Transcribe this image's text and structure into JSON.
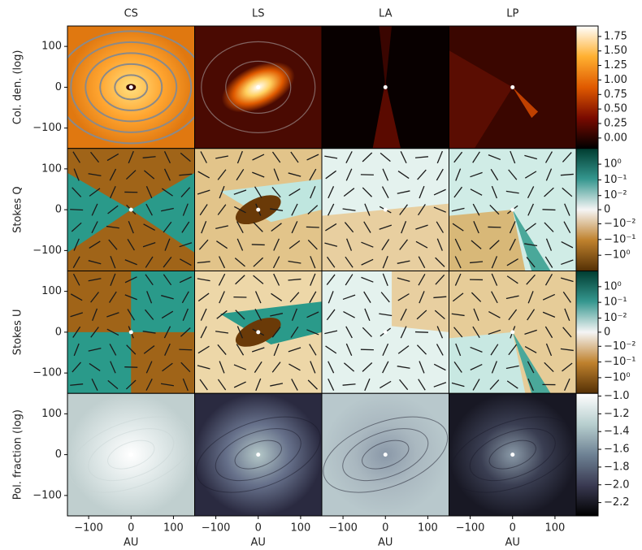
{
  "figure": {
    "columns": [
      "CS",
      "LS",
      "LA",
      "LP"
    ],
    "x_axis": {
      "label": "AU",
      "lim": [
        -150,
        150
      ],
      "ticks": [
        {
          "value": -100,
          "label": "−100"
        },
        0,
        100
      ]
    },
    "rows": [
      {
        "label": "Col. den. (log)",
        "ylim": [
          -150,
          150
        ],
        "yticks": [
          100,
          0,
          {
            "value": -100,
            "label": "−100"
          }
        ],
        "colorbar": {
          "scale": "linear",
          "lim": [
            -0.18,
            1.93
          ],
          "ticks": [
            {
              "value": 0,
              "label": "0.00"
            },
            0.25,
            {
              "value": 0.5,
              "label": "0.50"
            },
            0.75,
            {
              "value": 1,
              "label": "1.00"
            },
            1.25,
            {
              "value": 1.5,
              "label": "1.50"
            },
            1.75
          ],
          "colors": [
            "#000000",
            "#7a0a00",
            "#e05a00",
            "#ffb030",
            "#ffffff"
          ]
        }
      },
      {
        "label": "Stokes Q",
        "ylim": [
          -150,
          150
        ],
        "yticks": [
          100,
          0,
          {
            "value": -100,
            "label": "−100"
          }
        ],
        "colorbar": {
          "scale": "symlog",
          "linthresh": 0.01,
          "lim": [
            -10,
            10
          ],
          "ticks": [
            {
              "value": 1,
              "label": "10⁰"
            },
            {
              "value": 0.1,
              "label": "10⁻¹"
            },
            {
              "value": 0.01,
              "label": "10⁻²"
            },
            0,
            {
              "value": -0.01,
              "label": "−10⁻²"
            },
            {
              "value": -0.1,
              "label": "−10⁻¹"
            },
            {
              "value": -1,
              "label": "−10⁰"
            }
          ],
          "colors": [
            "#543005",
            "#bf812d",
            "#f5f5f5",
            "#35978f",
            "#003c30"
          ]
        }
      },
      {
        "label": "Stokes U",
        "ylim": [
          -150,
          150
        ],
        "yticks": [
          100,
          0,
          {
            "value": -100,
            "label": "−100"
          }
        ],
        "colorbar": {
          "scale": "symlog",
          "linthresh": 0.01,
          "lim": [
            -10,
            10
          ],
          "ticks": [
            {
              "value": 1,
              "label": "10⁰"
            },
            {
              "value": 0.1,
              "label": "10⁻¹"
            },
            {
              "value": 0.01,
              "label": "10⁻²"
            },
            0,
            {
              "value": -0.01,
              "label": "−10⁻²"
            },
            {
              "value": -0.1,
              "label": "−10⁻¹"
            },
            {
              "value": -1,
              "label": "−10⁰"
            }
          ],
          "colors": [
            "#543005",
            "#bf812d",
            "#f5f5f5",
            "#35978f",
            "#003c30"
          ]
        }
      },
      {
        "label": "Pol. fraction (log)",
        "ylim": [
          -150,
          150
        ],
        "yticks": [
          100,
          0,
          {
            "value": -100,
            "label": "−100"
          }
        ],
        "colorbar": {
          "scale": "linear",
          "lim": [
            -2.35,
            -0.97
          ],
          "ticks": [
            {
              "value": -1.0,
              "label": "−1.0"
            },
            {
              "value": -1.2,
              "label": "−1.2"
            },
            {
              "value": -1.4,
              "label": "−1.4"
            },
            {
              "value": -1.6,
              "label": "−1.6"
            },
            {
              "value": -1.8,
              "label": "−1.8"
            },
            {
              "value": -2.0,
              "label": "−2.0"
            },
            {
              "value": -2.2,
              "label": "−2.2"
            }
          ],
          "colors": [
            "#000000",
            "#3a3a52",
            "#6e8294",
            "#b8cfcf",
            "#ffffff"
          ]
        }
      }
    ]
  }
}
